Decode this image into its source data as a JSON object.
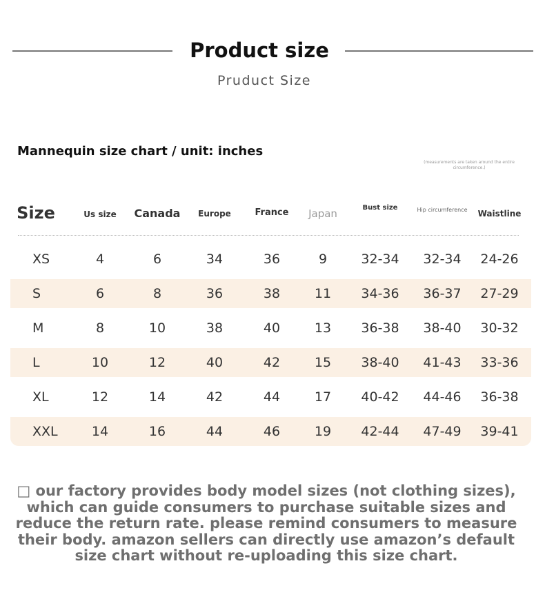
{
  "header": {
    "title": "Product size",
    "subtitle": "Pruduct Size"
  },
  "chart_label": "Mannequin size chart / unit: inches",
  "note": "(measurements are taken around the entire circumference.)",
  "table": {
    "columns": [
      "Size",
      "Us size",
      "Canada",
      "Europe",
      "France",
      "Japan",
      "Bust size",
      "Hip circumference",
      "Waistline"
    ],
    "rows": [
      [
        "XS",
        "4",
        "6",
        "34",
        "36",
        "9",
        "32-34",
        "32-34",
        "24-26"
      ],
      [
        "S",
        "6",
        "8",
        "36",
        "38",
        "11",
        "34-36",
        "36-37",
        "27-29"
      ],
      [
        "M",
        "8",
        "10",
        "38",
        "40",
        "13",
        "36-38",
        "38-40",
        "30-32"
      ],
      [
        "L",
        "10",
        "12",
        "40",
        "42",
        "15",
        "38-40",
        "41-43",
        "33-36"
      ],
      [
        "XL",
        "12",
        "14",
        "42",
        "44",
        "17",
        "40-42",
        "44-46",
        "36-38"
      ],
      [
        "XXL",
        "14",
        "16",
        "44",
        "46",
        "19",
        "42-44",
        "47-49",
        "39-41"
      ]
    ]
  },
  "footer": "□ our factory provides body model sizes (not clothing sizes), which can guide consumers to purchase suitable sizes and reduce the return rate. please remind consumers to measure their body. amazon sellers can directly use amazon’s default size chart without re-uploading this size chart.",
  "colors": {
    "row_shade": "#fbf0e4",
    "footer_text": "#6f6f6f",
    "japan_header": "#9a9a9a"
  }
}
